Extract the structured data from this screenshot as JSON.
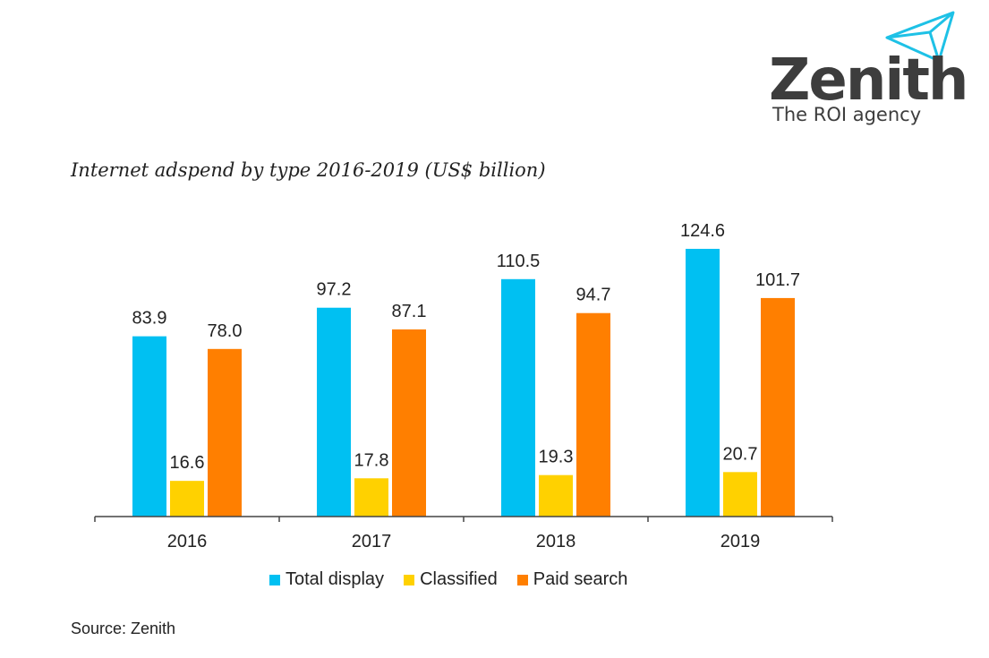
{
  "logo": {
    "wordmark": "Zenith",
    "tagline": "The ROI agency",
    "icon": "paper-plane-icon",
    "mark_color": "#1ec1e6",
    "text_color": "#3d3d3d"
  },
  "source": "Source: Zenith",
  "chart_data": {
    "type": "bar",
    "title": "Internet adspend by type 2016-2019 (US$ billion)",
    "xlabel": "",
    "ylabel": "",
    "categories": [
      "2016",
      "2017",
      "2018",
      "2019"
    ],
    "series": [
      {
        "name": "Total display",
        "color": "#00c0f2",
        "values": [
          83.9,
          97.2,
          110.5,
          124.6
        ],
        "labels": [
          "83.9",
          "97.2",
          "110.5",
          "124.6"
        ]
      },
      {
        "name": "Classified",
        "color": "#ffd100",
        "values": [
          16.6,
          17.8,
          19.3,
          20.7
        ],
        "labels": [
          "16.6",
          "17.8",
          "19.3",
          "20.7"
        ]
      },
      {
        "name": "Paid search",
        "color": "#ff7f00",
        "values": [
          78.0,
          87.1,
          94.7,
          101.7
        ],
        "labels": [
          "78.0",
          "87.1",
          "94.7",
          "101.7"
        ]
      }
    ],
    "ylim": [
      0,
      125
    ],
    "grid": false,
    "legend": "bottom",
    "data_labels": true
  }
}
